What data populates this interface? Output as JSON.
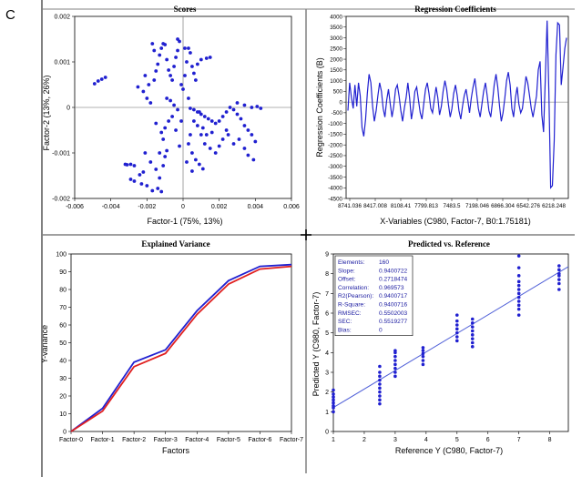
{
  "panel_label": "C",
  "colors": {
    "blue": "#2020d0",
    "red": "#e02020",
    "axis": "#000000",
    "grid_line": "#808080",
    "legend_text": "#1a1aa0"
  },
  "chart_data": [
    {
      "type": "scatter",
      "title": "Scores",
      "xlabel": "Factor-1 (75%, 13%)",
      "ylabel": "Factor-2 (13%, 26%)",
      "xlim": [
        -0.006,
        0.006
      ],
      "ylim": [
        -0.002,
        0.002
      ],
      "x_ticks": [
        "-0.006",
        "-0.004",
        "-0.002",
        "0",
        "0.002",
        "0.004",
        "0.006"
      ],
      "y_ticks": [
        "0.002",
        "0.001",
        "0",
        "-0.001",
        "-0.002"
      ],
      "series": [
        {
          "points": [
            [
              -0.0049,
              0.00052
            ],
            [
              -0.0047,
              0.00058
            ],
            [
              -0.0045,
              0.00062
            ],
            [
              -0.0043,
              0.00066
            ],
            [
              -0.0032,
              -0.00125
            ],
            [
              -0.0031,
              -0.00126
            ],
            [
              -0.0029,
              -0.00125
            ],
            [
              -0.0027,
              -0.00128
            ],
            [
              -0.0029,
              -0.00158
            ],
            [
              -0.0027,
              -0.00162
            ],
            [
              -0.0023,
              -0.00168
            ],
            [
              -0.002,
              -0.00172
            ],
            [
              -0.0024,
              -0.00148
            ],
            [
              -0.0022,
              -0.00142
            ],
            [
              -0.0017,
              -0.00183
            ],
            [
              -0.0014,
              -0.00178
            ],
            [
              -0.0013,
              -0.00155
            ],
            [
              -0.0012,
              -0.00185
            ],
            [
              -0.0015,
              -0.00136
            ],
            [
              -0.0011,
              -0.00128
            ],
            [
              -0.001,
              -0.00108
            ],
            [
              -0.0009,
              -0.00095
            ],
            [
              -0.0012,
              -0.00055
            ],
            [
              -0.001,
              -0.00045
            ],
            [
              -0.0008,
              -0.0003
            ],
            [
              -0.0006,
              -0.0002
            ],
            [
              -0.0004,
              -0.0005
            ],
            [
              -0.0002,
              -0.00085
            ],
            [
              -0.0025,
              0.00045
            ],
            [
              -0.0022,
              0.00035
            ],
            [
              -0.002,
              0.0002
            ],
            [
              -0.0018,
              0.0001
            ],
            [
              -0.0016,
              0.0006
            ],
            [
              -0.0015,
              0.0008
            ],
            [
              -0.0014,
              0.00095
            ],
            [
              -0.0013,
              0.00115
            ],
            [
              -0.0012,
              0.0013
            ],
            [
              -0.0011,
              0.0014
            ],
            [
              -0.001,
              0.00138
            ],
            [
              -0.0009,
              0.00105
            ],
            [
              -0.0008,
              0.00082
            ],
            [
              -0.0007,
              0.0007
            ],
            [
              -0.0006,
              0.0006
            ],
            [
              -0.0005,
              0.0009
            ],
            [
              -0.0004,
              0.0011
            ],
            [
              -0.0003,
              0.0015
            ],
            [
              -0.0002,
              0.00145
            ],
            [
              -0.0001,
              0.0005
            ],
            [
              0.0,
              0.0004
            ],
            [
              0.0001,
              0.0007
            ],
            [
              0.0002,
              0.001
            ],
            [
              0.0003,
              0.0013
            ],
            [
              0.0004,
              0.0012
            ],
            [
              0.0005,
              0.0009
            ],
            [
              0.0006,
              0.00075
            ],
            [
              0.0007,
              0.0006
            ],
            [
              -0.0017,
              0.0014
            ],
            [
              -0.0016,
              0.00125
            ],
            [
              -0.0003,
              0.00125
            ],
            [
              0.0001,
              0.0013
            ],
            [
              0.0008,
              0.00095
            ],
            [
              0.001,
              0.00105
            ],
            [
              0.0013,
              0.00108
            ],
            [
              0.0015,
              0.0011
            ],
            [
              -0.0009,
              0.0002
            ],
            [
              -0.0007,
              0.00015
            ],
            [
              -0.0005,
              5e-05
            ],
            [
              -0.0003,
              -5e-05
            ],
            [
              0.0004,
              -2e-05
            ],
            [
              0.0006,
              -5e-05
            ],
            [
              0.0008,
              -0.0001
            ],
            [
              0.001,
              -0.00015
            ],
            [
              0.0012,
              -0.0002
            ],
            [
              0.0014,
              -0.00025
            ],
            [
              0.0016,
              -0.0003
            ],
            [
              0.0018,
              -0.00035
            ],
            [
              0.002,
              -0.0003
            ],
            [
              0.0022,
              -0.0002
            ],
            [
              0.0024,
              -0.0001
            ],
            [
              0.0026,
              0.0
            ],
            [
              0.0028,
              -5e-05
            ],
            [
              0.003,
              -0.00015
            ],
            [
              0.0032,
              -0.00025
            ],
            [
              0.0034,
              -0.0004
            ],
            [
              0.0036,
              -0.0005
            ],
            [
              0.0038,
              -0.0006
            ],
            [
              0.003,
              0.0001
            ],
            [
              0.0034,
              5e-05
            ],
            [
              0.0038,
              0.0
            ],
            [
              0.0041,
              2e-05
            ],
            [
              0.0043,
              -2e-05
            ],
            [
              0.0025,
              -0.0006
            ],
            [
              0.0022,
              -0.0007
            ],
            [
              0.002,
              -0.00085
            ],
            [
              0.0018,
              -0.001
            ],
            [
              0.0015,
              -0.0009
            ],
            [
              0.0012,
              -0.0008
            ],
            [
              0.001,
              -0.0006
            ],
            [
              0.0008,
              -0.0004
            ],
            [
              0.0006,
              -0.0003
            ],
            [
              0.0004,
              -0.0006
            ],
            [
              0.0003,
              -0.0008
            ],
            [
              0.0005,
              -0.001
            ],
            [
              0.0007,
              -0.00115
            ],
            [
              0.0009,
              -0.00125
            ],
            [
              0.0011,
              -0.00135
            ],
            [
              0.0002,
              -0.0012
            ],
            [
              0.0005,
              -0.0014
            ],
            [
              0.0028,
              -0.0008
            ],
            [
              0.0031,
              -0.0007
            ],
            [
              0.0034,
              -0.0009
            ],
            [
              0.0036,
              -0.00105
            ],
            [
              0.0039,
              -0.00115
            ],
            [
              0.004,
              -0.00075
            ],
            [
              0.0024,
              -0.0005
            ],
            [
              0.0016,
              -0.00055
            ],
            [
              0.0013,
              -0.0006
            ],
            [
              0.0011,
              -0.00045
            ],
            [
              0.0009,
              -0.0001
            ],
            [
              0.0003,
              0.0002
            ],
            [
              -0.0001,
              -0.0003
            ],
            [
              -0.0011,
              -0.0007
            ],
            [
              -0.0013,
              -0.001
            ],
            [
              -0.0018,
              -0.0012
            ],
            [
              -0.0021,
              -0.001
            ],
            [
              -0.0015,
              -0.00035
            ],
            [
              -0.0019,
              0.0005
            ],
            [
              -0.0021,
              0.0007
            ]
          ]
        }
      ]
    },
    {
      "type": "line",
      "title": "Regression Coefficients",
      "xlabel": "X-Variables (C980, Factor-7, B0:1.75181)",
      "ylabel": "Regression Coefficients (B)",
      "ylim": [
        -4500,
        4000
      ],
      "y_ticks": [
        "4000",
        "3500",
        "3000",
        "2500",
        "2000",
        "1500",
        "1000",
        "500",
        "0",
        "-500",
        "-1000",
        "-1500",
        "-2000",
        "-2500",
        "-3000",
        "-3500",
        "-4000",
        "-4500"
      ],
      "x_ticks": [
        "8741.036",
        "8417.008",
        "8108.41",
        "7799.813",
        "7483.5",
        "7198.046",
        "6866.304",
        "6542.276",
        "6218.248"
      ],
      "series": [
        {
          "values": [
            -400,
            900,
            200,
            -300,
            800,
            -200,
            900,
            300,
            -1200,
            -1600,
            -800,
            400,
            1300,
            900,
            -200,
            -900,
            -400,
            300,
            900,
            500,
            -300,
            -700,
            100,
            600,
            -100,
            -700,
            -200,
            600,
            800,
            300,
            -400,
            -900,
            -300,
            200,
            900,
            200,
            -800,
            -300,
            500,
            700,
            100,
            -500,
            -800,
            -100,
            600,
            900,
            400,
            -300,
            -500,
            100,
            700,
            200,
            -600,
            -200,
            500,
            1000,
            600,
            -100,
            -700,
            -300,
            400,
            800,
            300,
            -400,
            -800,
            -200,
            300,
            600,
            100,
            -500,
            200,
            700,
            1100,
            400,
            -300,
            -700,
            -100,
            500,
            900,
            300,
            -400,
            -700,
            0,
            800,
            1300,
            700,
            -200,
            -900,
            -500,
            200,
            1000,
            1400,
            800,
            -300,
            -700,
            200,
            700,
            -100,
            -500,
            -300,
            400,
            1200,
            900,
            300,
            -300,
            -700,
            -200,
            300,
            1500,
            1900,
            -600,
            -1400,
            1200,
            3800,
            500,
            -4000,
            -3900,
            -1800,
            2200,
            3700,
            3600,
            800,
            1600,
            2500,
            3000
          ]
        }
      ]
    },
    {
      "type": "line",
      "title": "Explained Variance",
      "xlabel": "Factors",
      "ylabel": "Y-variance",
      "categories": [
        "Factor-0",
        "Factor-1",
        "Factor-2",
        "Factor-3",
        "Factor-4",
        "Factor-5",
        "Factor-6",
        "Factor-7"
      ],
      "ylim": [
        0,
        100
      ],
      "y_ticks": [
        "100",
        "90",
        "80",
        "70",
        "60",
        "50",
        "40",
        "30",
        "20",
        "10",
        "0"
      ],
      "series": [
        {
          "color": "blue",
          "values": [
            0,
            13,
            39,
            46,
            68,
            85,
            93,
            94
          ]
        },
        {
          "color": "red",
          "values": [
            0,
            11.5,
            36.5,
            44,
            66,
            83,
            91.5,
            93
          ]
        }
      ]
    },
    {
      "type": "scatter",
      "title": "Predicted vs. Reference",
      "xlabel": "Reference Y (C980, Factor-7)",
      "ylabel": "Predicted Y (C980, Factor-7)",
      "xlim": [
        1,
        8.6
      ],
      "ylim": [
        0,
        9
      ],
      "x_ticks": [
        "1",
        "2",
        "3",
        "4",
        "5",
        "6",
        "7",
        "8"
      ],
      "y_ticks": [
        "9",
        "8",
        "7",
        "6",
        "5",
        "4",
        "3",
        "2",
        "1",
        "0"
      ],
      "stats": [
        {
          "label": "Elements:",
          "value": "160"
        },
        {
          "label": "Slope:",
          "value": "0.9400722"
        },
        {
          "label": "Offset:",
          "value": "0.2718474"
        },
        {
          "label": "Correlation:",
          "value": "0.969573"
        },
        {
          "label": "R2(Pearson):",
          "value": "0.9400717"
        },
        {
          "label": "R-Square:",
          "value": "0.9400716"
        },
        {
          "label": "RMSEC:",
          "value": "0.5502003"
        },
        {
          "label": "SEC:",
          "value": "0.5519277"
        },
        {
          "label": "Bias:",
          "value": "0"
        }
      ],
      "regression_line": {
        "x": [
          1,
          8.6
        ],
        "y": [
          1.212,
          8.356
        ]
      },
      "groups": [
        {
          "x": 1.0,
          "y": [
            1.0,
            1.2,
            1.3,
            1.45,
            1.6,
            1.75,
            1.9,
            2.1
          ]
        },
        {
          "x": 2.5,
          "y": [
            1.4,
            1.6,
            1.8,
            2.0,
            2.2,
            2.4,
            2.6,
            2.8,
            3.0,
            3.3
          ]
        },
        {
          "x": 3.0,
          "y": [
            2.8,
            3.0,
            3.2,
            3.4,
            3.6,
            3.8,
            4.0,
            4.1
          ]
        },
        {
          "x": 3.9,
          "y": [
            3.4,
            3.6,
            3.8,
            3.95,
            4.1,
            4.25
          ]
        },
        {
          "x": 5.0,
          "y": [
            4.6,
            4.8,
            5.0,
            5.2,
            5.4,
            5.6,
            5.9
          ]
        },
        {
          "x": 5.5,
          "y": [
            4.3,
            4.5,
            4.7,
            4.9,
            5.1,
            5.3,
            5.5,
            5.7
          ]
        },
        {
          "x": 7.0,
          "y": [
            5.9,
            6.2,
            6.4,
            6.6,
            6.8,
            7.0,
            7.2,
            7.4,
            7.6,
            7.9,
            8.3,
            8.9
          ]
        },
        {
          "x": 8.3,
          "y": [
            7.2,
            7.5,
            7.7,
            7.9,
            8.0,
            8.2,
            8.4
          ]
        }
      ]
    }
  ]
}
